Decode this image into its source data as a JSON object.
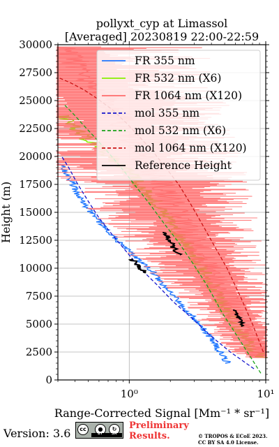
{
  "chart_data": {
    "type": "line",
    "title": "pollyxt_cyp at Limassol",
    "subtitle": "[Averaged] 20230819 22:00-22:59",
    "xlabel": "Range-Corrected Signal [Mm⁻¹ * sr⁻¹]",
    "ylabel": "Height (m)",
    "x_scale": "log",
    "xlim": [
      0.3,
      10
    ],
    "ylim": [
      0,
      30000
    ],
    "x_ticks": [
      {
        "value": 1,
        "label": "10⁰"
      },
      {
        "value": 10,
        "label": "10¹"
      }
    ],
    "y_ticks": [
      0,
      2500,
      5000,
      7500,
      10000,
      12500,
      15000,
      17500,
      20000,
      22500,
      25000,
      27500,
      30000
    ],
    "grid": true,
    "legend_position": "top-right",
    "series": [
      {
        "name": "FR 355 nm",
        "color": "#1f77ff",
        "style": "solid",
        "x": [
          5.3,
          4.5,
          3.8,
          3.0,
          2.3,
          1.8,
          1.4,
          1.1,
          0.9,
          0.75,
          0.62,
          0.55,
          0.48,
          0.44,
          0.41,
          0.39,
          0.36,
          0.34,
          0.33,
          0.32
        ],
        "y": [
          1500,
          2700,
          4000,
          5500,
          7000,
          8500,
          10000,
          11000,
          12000,
          13000,
          14000,
          14800,
          15500,
          16200,
          16800,
          17500,
          18200,
          18600,
          19000,
          19300
        ]
      },
      {
        "name": "FR 532 nm (X6)",
        "color": "#88ee00",
        "style": "solid",
        "x": [
          9.0,
          7.0,
          5.6,
          4.7,
          4.0,
          3.4,
          2.9,
          2.5,
          2.1,
          1.75,
          1.45,
          1.2,
          1.0,
          0.85,
          0.72,
          0.6,
          0.5,
          0.42,
          0.36,
          0.32
        ],
        "y": [
          2000,
          4000,
          5500,
          7000,
          8500,
          10000,
          11500,
          12500,
          13500,
          15000,
          16500,
          17500,
          18500,
          19300,
          20000,
          20800,
          21500,
          22300,
          23000,
          23700
        ]
      },
      {
        "name": "FR 1064 nm (X120)",
        "color": "#ff6b6b",
        "style": "solid",
        "x": [
          9.5,
          8.5,
          7.0,
          6.0,
          5.0,
          4.2,
          3.5,
          3.0,
          2.6,
          2.2,
          1.9,
          1.6,
          1.3,
          1.1,
          0.95,
          0.8,
          0.65,
          0.5,
          0.4,
          0.33
        ],
        "y": [
          2000,
          3000,
          4500,
          6000,
          7500,
          9000,
          10500,
          12000,
          13500,
          15000,
          16500,
          18000,
          19500,
          21000,
          22500,
          24000,
          25500,
          27000,
          28500,
          29800
        ]
      },
      {
        "name": "mol 355 nm",
        "color": "#1414cc",
        "style": "dashed",
        "x": [
          8.2,
          5.5,
          3.9,
          2.9,
          2.1,
          1.6,
          1.2,
          0.95,
          0.75,
          0.6,
          0.5,
          0.42,
          0.36,
          0.32
        ],
        "y": [
          1000,
          2500,
          4000,
          5500,
          7000,
          8500,
          10000,
          11500,
          13000,
          14500,
          16000,
          17500,
          19000,
          20000
        ]
      },
      {
        "name": "mol 532 nm (X6)",
        "color": "#1aa31a",
        "style": "dashed",
        "x": [
          9.2,
          6.5,
          4.8,
          3.7,
          2.9,
          2.3,
          1.8,
          1.4,
          1.12,
          0.9,
          0.72,
          0.58,
          0.47,
          0.39,
          0.33
        ],
        "y": [
          600,
          3500,
          6000,
          8500,
          10500,
          12300,
          14000,
          15800,
          17300,
          18800,
          20200,
          21500,
          22700,
          23800,
          24700
        ]
      },
      {
        "name": "mol 1064 nm (X120)",
        "color": "#cc1414",
        "style": "dashed",
        "x": [
          9.6,
          8.0,
          6.5,
          5.2,
          4.2,
          3.4,
          2.8,
          2.3,
          1.85,
          1.5,
          1.2,
          0.95,
          0.75,
          0.58,
          0.46,
          0.37,
          0.31
        ],
        "y": [
          2500,
          5000,
          7500,
          10000,
          12000,
          14000,
          15800,
          17500,
          19000,
          20400,
          21700,
          23000,
          24200,
          25200,
          26000,
          26600,
          27000
        ]
      },
      {
        "name": "Reference Height",
        "color": "#000000",
        "style": "solid",
        "segments": [
          {
            "x": [
              1.05,
              1.12,
              1.2,
              1.3
            ],
            "y": [
              10800,
              10400,
              10000,
              9600
            ]
          },
          {
            "x": [
              1.8,
              1.95,
              2.1,
              2.3
            ],
            "y": [
              13200,
              12600,
              11900,
              11200
            ]
          },
          {
            "x": [
              5.8,
              6.1,
              6.4,
              6.8
            ],
            "y": [
              6300,
              5800,
              5300,
              4800
            ]
          }
        ]
      }
    ]
  },
  "footer": {
    "version": "Version: 3.6",
    "preliminary_line1": "Preliminary",
    "preliminary_line2": "Results.",
    "copyright_line1": "© TROPOS & ECoE 2023.",
    "copyright_line2": "CC BY SA 4.0 License.",
    "license_badge": {
      "label_cc": "cc",
      "label_by": "BY",
      "label_sa": "SA",
      "icons": [
        "creative-commons-icon",
        "attribution-icon",
        "share-alike-icon"
      ]
    }
  }
}
